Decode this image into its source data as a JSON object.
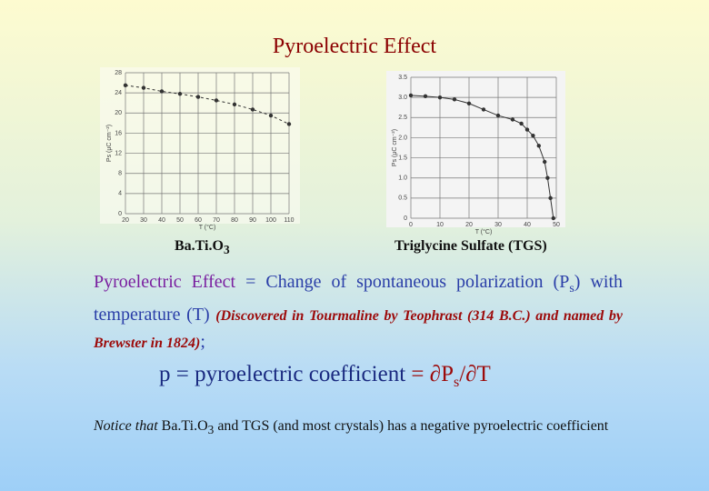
{
  "title": "Pyroelectric Effect",
  "chart_data": [
    {
      "type": "line",
      "ylabel": "Ps (μC cm⁻²)",
      "xlabel": "T (°C)",
      "line_style": "dashed",
      "x": [
        20,
        30,
        40,
        50,
        60,
        70,
        80,
        90,
        100,
        110
      ],
      "series": [
        {
          "color": "#333333",
          "values": [
            25.5,
            25,
            24.3,
            23.8,
            23.2,
            22.5,
            21.7,
            20.7,
            19.5,
            17.8
          ]
        }
      ],
      "xlim": [
        20,
        110
      ],
      "xticks": [
        20,
        30,
        40,
        50,
        60,
        70,
        80,
        90,
        100,
        110
      ],
      "ylim": [
        0,
        28
      ],
      "yticks": [
        0,
        4,
        8,
        12,
        16,
        20,
        24,
        28
      ],
      "grid": true
    },
    {
      "type": "line",
      "ylabel": "Ps (μC cm⁻²)",
      "xlabel": "T (°C)",
      "line_style": "solid",
      "x": [
        0,
        5,
        10,
        15,
        20,
        25,
        30,
        35,
        38,
        40,
        42,
        44,
        46,
        47,
        48,
        49
      ],
      "series": [
        {
          "color": "#333333",
          "values": [
            3.05,
            3.03,
            3.0,
            2.95,
            2.85,
            2.7,
            2.55,
            2.45,
            2.35,
            2.2,
            2.05,
            1.8,
            1.4,
            1.0,
            0.5,
            0
          ]
        }
      ],
      "xlim": [
        0,
        50
      ],
      "xticks": [
        0,
        10,
        20,
        30,
        40,
        50
      ],
      "ylim": [
        0,
        3.5
      ],
      "yticks": [
        0,
        {
          "value": 0.5,
          "label": "0.5"
        },
        {
          "value": 1,
          "label": "1.0"
        },
        {
          "value": 1.5,
          "label": "1.5"
        },
        {
          "value": 2,
          "label": "2.0"
        },
        {
          "value": 2.5,
          "label": "2.5"
        },
        {
          "value": 3,
          "label": "3.0"
        },
        3.5
      ],
      "grid": true
    }
  ],
  "captions": [
    [
      "Ba.Ti.O",
      "3"
    ],
    "Triglycine Sulfate (TGS)"
  ],
  "definition": [
    "Pyroelectric Effect",
    " = Change of spontaneous polarization (P",
    "s",
    ") with temperature (T) ",
    "(Discovered in Tourmaline by Teophrast (314 B.C.) and named by Brewster in 1824)",
    ";"
  ],
  "equation": [
    "p = pyroelectric coefficient ",
    " = ∂P",
    "s",
    "/∂T"
  ],
  "notice": [
    "Notice that",
    " Ba.Ti.O",
    "3",
    " and TGS (and most crystals) has a negative pyroelectric coefficient"
  ]
}
